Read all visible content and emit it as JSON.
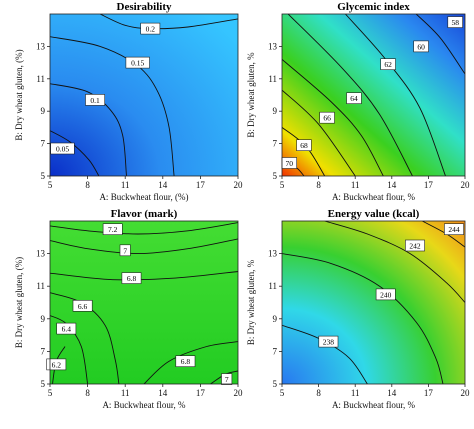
{
  "chart_data": [
    {
      "type": "heatmap",
      "subtype": "contour",
      "title": "Desirability",
      "xlabel": "A: Buckwheat flour, (%)",
      "ylabel": "B: Dry wheat gluten, (%)",
      "xlim": [
        5,
        20
      ],
      "ylim": [
        5,
        15
      ],
      "xticks": [
        "5",
        "8",
        "11",
        "14",
        "17",
        "20"
      ],
      "yticks": [
        "5",
        "7",
        "9",
        "11",
        "13"
      ],
      "colormap": [
        "#0a2ec8",
        "#2a8cf0",
        "#35c5ff"
      ],
      "contours": [
        {
          "label": "0.05",
          "value": 0.05
        },
        {
          "label": "0.1",
          "value": 0.1
        },
        {
          "label": "0.15",
          "value": 0.15
        },
        {
          "label": "0.2",
          "value": 0.2
        }
      ]
    },
    {
      "type": "heatmap",
      "subtype": "contour",
      "title": "Glycemic index",
      "xlabel": "A: Buckwheat flour, %",
      "ylabel": "B: Dry wheat gluten, %",
      "xlim": [
        5,
        20
      ],
      "ylim": [
        5,
        15
      ],
      "xticks": [
        "5",
        "8",
        "11",
        "14",
        "17",
        "20"
      ],
      "yticks": [
        "5",
        "7",
        "9",
        "11",
        "13"
      ],
      "colormap": [
        "#f03000",
        "#f0e000",
        "#3ad020",
        "#30e0c8",
        "#2a88f0",
        "#1848d8"
      ],
      "contours": [
        {
          "label": "70",
          "value": 70
        },
        {
          "label": "68",
          "value": 68
        },
        {
          "label": "66",
          "value": 66
        },
        {
          "label": "64",
          "value": 64
        },
        {
          "label": "62",
          "value": 62
        },
        {
          "label": "60",
          "value": 60
        },
        {
          "label": "58",
          "value": 58
        }
      ]
    },
    {
      "type": "heatmap",
      "subtype": "contour",
      "title": "Flavor (mark)",
      "xlabel": "A: Buckwheat flour, %",
      "ylabel": "B: Dry wheat gluten, (%)",
      "xlim": [
        5,
        20
      ],
      "ylim": [
        5,
        15
      ],
      "xticks": [
        "5",
        "8",
        "11",
        "14",
        "17",
        "20"
      ],
      "yticks": [
        "5",
        "7",
        "9",
        "11",
        "13"
      ],
      "colormap": [
        "#22cc22",
        "#44dd33"
      ],
      "contours": [
        {
          "label": "7.2",
          "value": 7.2
        },
        {
          "label": "7",
          "value": 7.0
        },
        {
          "label": "6.8",
          "value": 6.8
        },
        {
          "label": "6.6",
          "value": 6.6
        },
        {
          "label": "6.4",
          "value": 6.4
        },
        {
          "label": "6.2",
          "value": 6.2
        },
        {
          "label": "6.8",
          "value": 6.8
        },
        {
          "label": "7",
          "value": 7.0
        }
      ]
    },
    {
      "type": "heatmap",
      "subtype": "contour",
      "title": "Energy value (kcal)",
      "xlabel": "A: Buckwheat flour, %",
      "ylabel": "B: Dry wheat gluten, %",
      "xlim": [
        5,
        20
      ],
      "ylim": [
        5,
        15
      ],
      "xticks": [
        "5",
        "8",
        "11",
        "14",
        "17",
        "20"
      ],
      "yticks": [
        "5",
        "7",
        "9",
        "11",
        "13"
      ],
      "colormap": [
        "#2878f0",
        "#30d8e8",
        "#38d030",
        "#e8d818",
        "#f09018"
      ],
      "contours": [
        {
          "label": "238",
          "value": 238
        },
        {
          "label": "240",
          "value": 240
        },
        {
          "label": "242",
          "value": 242
        },
        {
          "label": "244",
          "value": 244
        }
      ]
    }
  ]
}
